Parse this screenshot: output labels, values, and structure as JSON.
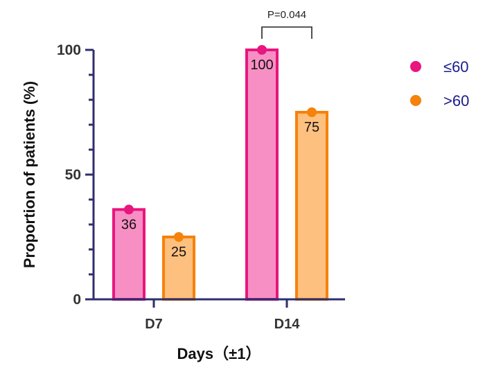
{
  "chart_data": {
    "type": "bar",
    "categories": [
      "D7",
      "D14"
    ],
    "series": [
      {
        "name": "≤60",
        "values": [
          36,
          100
        ],
        "fill": "#f78fc4",
        "stroke": "#e8167f",
        "marker": "#e8167f"
      },
      {
        "name": ">60",
        "values": [
          25,
          75
        ],
        "fill": "#fdc07f",
        "stroke": "#f5820a",
        "marker": "#f5820a"
      }
    ],
    "xlabel": "Days（±1）",
    "ylabel": "Proportion of patients (%)",
    "ylim": [
      0,
      100
    ],
    "yticks": [
      0,
      50,
      100
    ],
    "legend_position": "right",
    "annotation": {
      "text": "P=0.044",
      "category": "D14"
    },
    "axis_color": "#2e2e6e",
    "label_color": "#333333"
  }
}
